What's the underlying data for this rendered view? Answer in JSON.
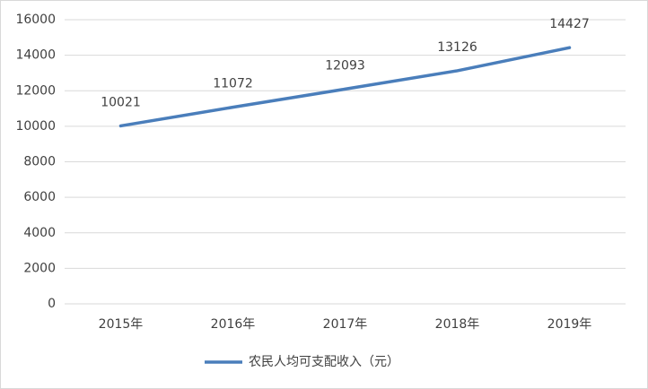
{
  "chart_data": {
    "type": "line",
    "categories": [
      "2015年",
      "2016年",
      "2017年",
      "2018年",
      "2019年"
    ],
    "series": [
      {
        "name": "农民人均可支配收入（元）",
        "color": "#4a7ebb",
        "values": [
          10021,
          11072,
          12093,
          13126,
          14427
        ]
      }
    ],
    "ylim": [
      0,
      16000
    ],
    "yticks": [
      0,
      2000,
      4000,
      6000,
      8000,
      10000,
      12000,
      14000,
      16000
    ],
    "grid": true,
    "legend": "bottom"
  }
}
